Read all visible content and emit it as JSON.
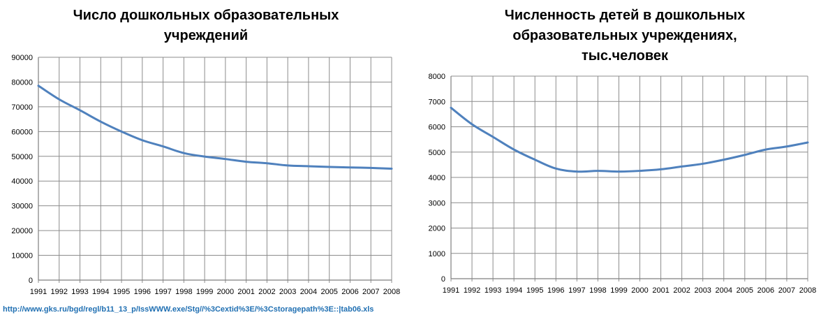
{
  "chart_data": [
    {
      "type": "line",
      "title": "Число дошкольных образовательных\nучреждений",
      "xlabel": "",
      "ylabel": "",
      "categories": [
        "1991",
        "1992",
        "1993",
        "1994",
        "1995",
        "1996",
        "1997",
        "1998",
        "1999",
        "2000",
        "2001",
        "2002",
        "2003",
        "2004",
        "2005",
        "2006",
        "2007",
        "2008"
      ],
      "series": [
        {
          "values": [
            78500,
            73000,
            68600,
            64000,
            60000,
            56500,
            54000,
            51300,
            49900,
            48900,
            47800,
            47200,
            46300,
            46000,
            45700,
            45500,
            45300,
            45000
          ]
        }
      ],
      "ylim": [
        0,
        90000
      ],
      "yticks": [
        0,
        10000,
        20000,
        30000,
        40000,
        50000,
        60000,
        70000,
        80000,
        90000
      ],
      "grid": true,
      "legend": "none",
      "line_color": "#4f81bd"
    },
    {
      "type": "line",
      "title": "Численность детей в дошкольных\nобразовательных учреждениях,\nтыс.человек",
      "xlabel": "",
      "ylabel": "",
      "categories": [
        "1991",
        "1992",
        "1993",
        "1994",
        "1995",
        "1996",
        "1997",
        "1998",
        "1999",
        "2000",
        "2001",
        "2002",
        "2003",
        "2004",
        "2005",
        "2006",
        "2007",
        "2008"
      ],
      "series": [
        {
          "values": [
            6750,
            6100,
            5600,
            5100,
            4700,
            4350,
            4230,
            4260,
            4230,
            4260,
            4320,
            4430,
            4540,
            4700,
            4890,
            5100,
            5220,
            5380
          ]
        }
      ],
      "ylim": [
        0,
        8000
      ],
      "yticks": [
        0,
        1000,
        2000,
        3000,
        4000,
        5000,
        6000,
        7000,
        8000
      ],
      "grid": true,
      "legend": "none",
      "line_color": "#4f81bd"
    }
  ],
  "source_link": "http://www.gks.ru/bgd/regl/b11_13_p/IssWWW.exe/Stg//%3Cextid%3E/%3Cstoragepath%3E::|tab06.xls"
}
